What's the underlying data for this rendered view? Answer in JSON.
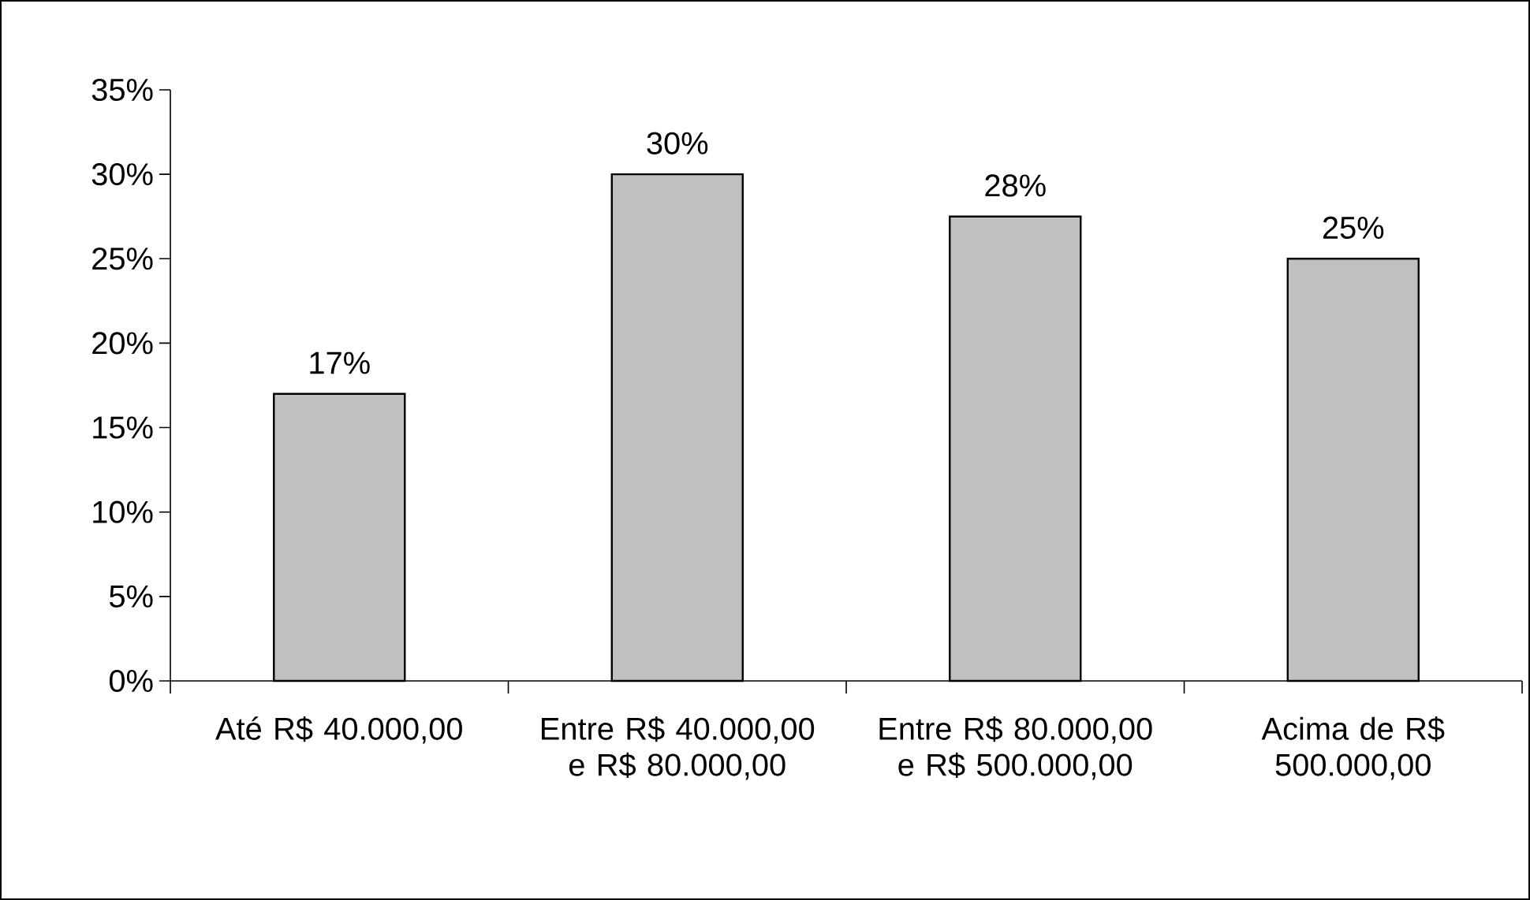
{
  "chart_data": {
    "type": "bar",
    "categories": [
      "Até R$ 40.000,00",
      "Entre R$ 40.000,00 e R$ 80.000,00",
      "Entre R$ 80.000,00 e R$ 500.000,00",
      "Acima de R$ 500.000,00"
    ],
    "values": [
      17,
      30,
      27.5,
      25
    ],
    "value_labels": [
      "17%",
      "30%",
      "28%",
      "25%"
    ],
    "color": "#c0c0c0",
    "ylim": [
      0,
      35
    ],
    "yticks": [
      {
        "value": 0,
        "label": "0%"
      },
      {
        "value": 5,
        "label": "5%"
      },
      {
        "value": 10,
        "label": "10%"
      },
      {
        "value": 15,
        "label": "15%"
      },
      {
        "value": 20,
        "label": "20%"
      },
      {
        "value": 25,
        "label": "25%"
      },
      {
        "value": 30,
        "label": "30%"
      },
      {
        "value": 35,
        "label": "35%"
      }
    ]
  }
}
